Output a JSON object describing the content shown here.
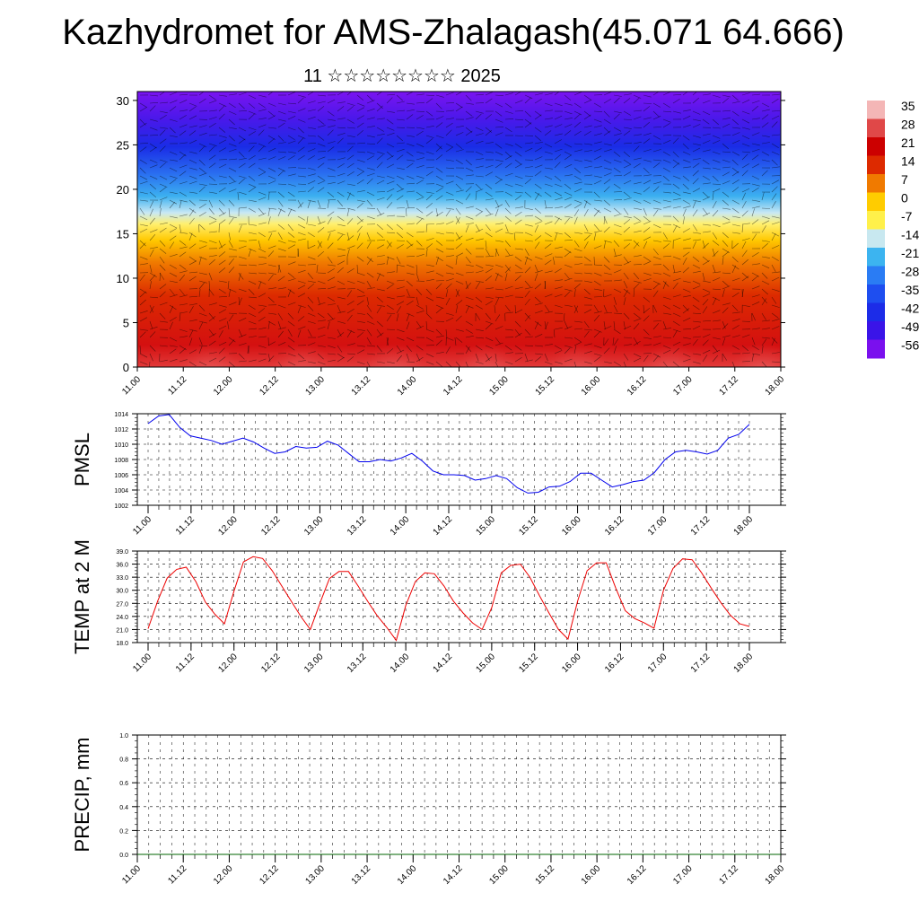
{
  "title": "Kazhydromet for AMS-Zhalagash(45.071 64.666)",
  "subtitle": "11 ☆☆☆☆☆☆☆☆ 2025",
  "colors": {
    "pmsl_line": "#0000ee",
    "temp_line": "#ee0000",
    "precip_line": "#006400"
  },
  "chart_data": [
    {
      "type": "heatmap",
      "description_key": "vertical-cross-section",
      "title": "",
      "x_ticks": [
        "11.00",
        "11.12",
        "12.00",
        "12.12",
        "13.00",
        "13.12",
        "14.00",
        "14.12",
        "15.00",
        "15.12",
        "16.00",
        "16.12",
        "17.00",
        "17.12",
        "18.00"
      ],
      "y_ticks": [
        "0",
        "5",
        "10",
        "15",
        "20",
        "25",
        "30"
      ],
      "ylim": [
        0,
        31
      ],
      "overlay": "wind barbs",
      "colorbar": {
        "labels": [
          "35",
          "28",
          "21",
          "14",
          "7",
          "0",
          "-7",
          "-14",
          "-21",
          "-28",
          "-35",
          "-42",
          "-49",
          "-56"
        ],
        "colors": [
          "#f4b6b6",
          "#e04848",
          "#cc0000",
          "#dd2a00",
          "#f07a00",
          "#ffcc00",
          "#fff04a",
          "#c8e8f0",
          "#3cb4f0",
          "#2a7cf4",
          "#1e4ef0",
          "#1c2ce8",
          "#3a14e8",
          "#7a10ee"
        ]
      }
    },
    {
      "type": "line",
      "ylabel": "PMSL",
      "ylim": [
        1002,
        1014
      ],
      "y_ticks": [
        "1002",
        "1004",
        "1006",
        "1008",
        "1010",
        "1012",
        "1014"
      ],
      "x_ticks": [
        "11.00",
        "11.12",
        "12.00",
        "12.12",
        "13.00",
        "13.12",
        "14.00",
        "14.12",
        "15.00",
        "15.12",
        "16.00",
        "16.12",
        "17.00",
        "17.12",
        "18.00"
      ],
      "series": [
        {
          "values": [
            1012.7,
            1013.7,
            1013.9,
            1012.2,
            1011.1,
            1010.8,
            1010.5,
            1010.0,
            1010.4,
            1010.8,
            1010.3,
            1009.5,
            1008.8,
            1009.0,
            1009.7,
            1009.5,
            1009.6,
            1010.4,
            1009.9,
            1008.8,
            1007.7,
            1007.7,
            1008.0,
            1007.8,
            1008.2,
            1008.8,
            1007.8,
            1006.5,
            1006.0,
            1006.0,
            1005.9,
            1005.3,
            1005.5,
            1005.9,
            1005.5,
            1004.3,
            1003.6,
            1003.7,
            1004.4,
            1004.5,
            1005.1,
            1006.2,
            1006.2,
            1005.3,
            1004.4,
            1004.7,
            1005.1,
            1005.3,
            1006.3,
            1008.0,
            1009.0,
            1009.2,
            1009.0,
            1008.7,
            1009.2,
            1010.8,
            1011.3,
            1012.6
          ]
        }
      ]
    },
    {
      "type": "line",
      "ylabel": "TEMP at 2 M",
      "ylim": [
        18,
        39
      ],
      "y_ticks": [
        "18.0",
        "21.0",
        "24.0",
        "27.0",
        "30.0",
        "33.0",
        "36.0",
        "39.0"
      ],
      "x_ticks": [
        "11.00",
        "11.12",
        "12.00",
        "12.12",
        "13.00",
        "13.12",
        "14.00",
        "14.12",
        "15.00",
        "15.12",
        "16.00",
        "16.12",
        "17.00",
        "17.12",
        "18.00"
      ],
      "series": [
        {
          "values": [
            21.2,
            27.5,
            32.8,
            34.8,
            35.3,
            32.0,
            27.3,
            24.5,
            22.3,
            29.8,
            36.5,
            37.7,
            37.3,
            34.5,
            31.0,
            27.5,
            24.0,
            21.0,
            27.0,
            32.7,
            34.3,
            34.3,
            31.0,
            27.5,
            24.2,
            21.5,
            18.5,
            26.5,
            32.0,
            34.0,
            33.8,
            31.0,
            27.5,
            24.8,
            22.5,
            21.0,
            26.0,
            34.0,
            35.7,
            36.0,
            33.0,
            28.8,
            24.8,
            21.0,
            18.8,
            27.5,
            34.5,
            36.3,
            36.3,
            30.5,
            25.3,
            23.5,
            22.5,
            21.3,
            30.0,
            35.0,
            37.2,
            37.0,
            34.0,
            30.5,
            27.2,
            24.3,
            22.3,
            21.7
          ]
        }
      ]
    },
    {
      "type": "line",
      "ylabel": "PRECIP, mm",
      "ylim": [
        0,
        1
      ],
      "y_ticks": [
        "0.0",
        "0.2",
        "0.4",
        "0.6",
        "0.8",
        "1.0"
      ],
      "x_ticks": [
        "11.00",
        "11.12",
        "12.00",
        "12.12",
        "13.00",
        "13.12",
        "14.00",
        "14.12",
        "15.00",
        "15.12",
        "16.00",
        "16.12",
        "17.00",
        "17.12",
        "18.00"
      ],
      "series": [
        {
          "values": [
            0,
            0,
            0,
            0,
            0,
            0,
            0,
            0,
            0,
            0,
            0,
            0,
            0,
            0,
            0
          ]
        }
      ]
    }
  ]
}
